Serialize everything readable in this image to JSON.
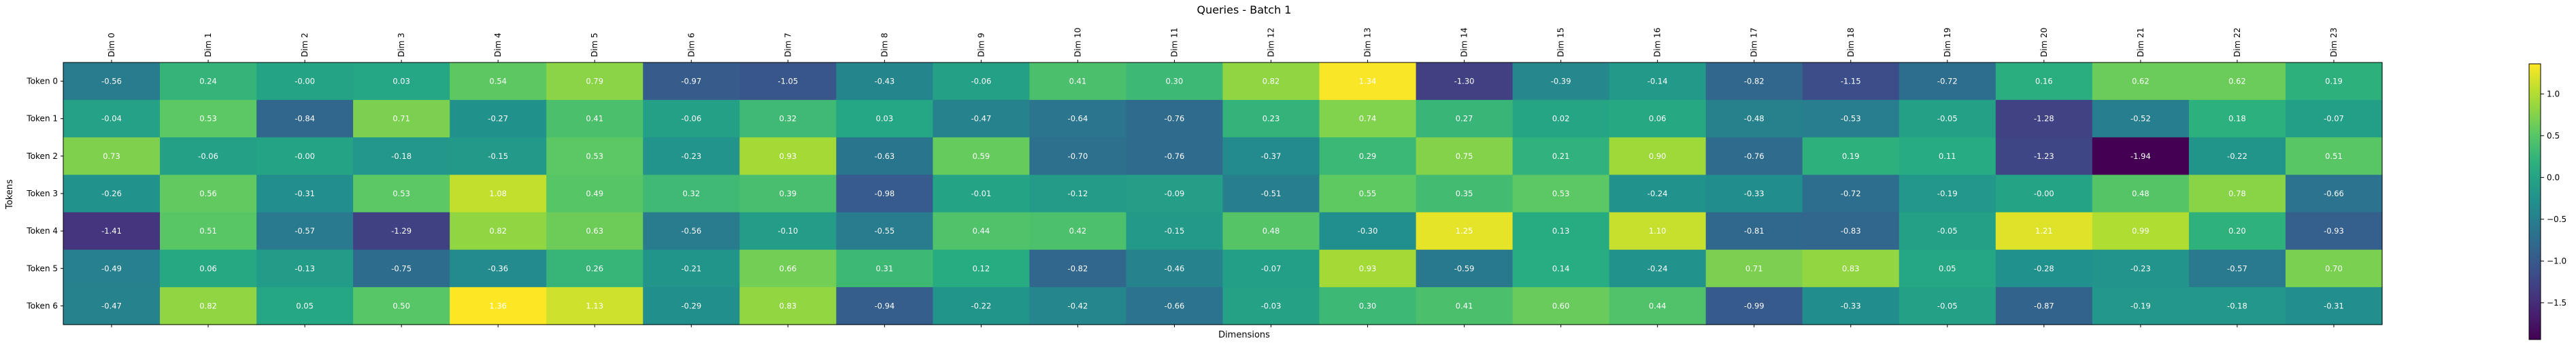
{
  "chart_data": {
    "type": "heatmap",
    "title": "Queries - Batch 1",
    "xlabel": "Dimensions",
    "ylabel": "Tokens",
    "x_categories": [
      "Dim 0",
      "Dim 1",
      "Dim 2",
      "Dim 3",
      "Dim 4",
      "Dim 5",
      "Dim 6",
      "Dim 7",
      "Dim 8",
      "Dim 9",
      "Dim 10",
      "Dim 11",
      "Dim 12",
      "Dim 13",
      "Dim 14",
      "Dim 15",
      "Dim 16",
      "Dim 17",
      "Dim 18",
      "Dim 19",
      "Dim 20",
      "Dim 21",
      "Dim 22",
      "Dim 23"
    ],
    "y_categories": [
      "Token 0",
      "Token 1",
      "Token 2",
      "Token 3",
      "Token 4",
      "Token 5",
      "Token 6"
    ],
    "values": [
      [
        -0.56,
        0.24,
        -0.0,
        0.03,
        0.54,
        0.79,
        -0.97,
        -1.05,
        -0.43,
        -0.06,
        0.41,
        0.3,
        0.82,
        1.34,
        -1.3,
        -0.39,
        -0.14,
        -0.82,
        -1.15,
        -0.72,
        0.16,
        0.62,
        0.62,
        0.19
      ],
      [
        -0.04,
        0.53,
        -0.84,
        0.71,
        -0.27,
        0.41,
        -0.06,
        0.32,
        0.03,
        -0.47,
        -0.64,
        -0.76,
        0.23,
        0.74,
        0.27,
        0.02,
        0.06,
        -0.48,
        -0.53,
        -0.05,
        -1.28,
        -0.52,
        0.18,
        -0.07
      ],
      [
        0.73,
        -0.06,
        -0.0,
        -0.18,
        -0.15,
        0.53,
        -0.23,
        0.93,
        -0.63,
        0.59,
        -0.7,
        -0.76,
        -0.37,
        0.29,
        0.75,
        0.21,
        0.9,
        -0.76,
        0.19,
        0.11,
        -1.23,
        -1.94,
        -0.22,
        0.51
      ],
      [
        -0.26,
        0.56,
        -0.31,
        0.53,
        1.08,
        0.49,
        0.32,
        0.39,
        -0.98,
        -0.01,
        -0.12,
        -0.09,
        -0.51,
        0.55,
        0.35,
        0.53,
        -0.24,
        -0.33,
        -0.72,
        -0.19,
        -0.0,
        0.48,
        0.78,
        -0.66
      ],
      [
        -1.41,
        0.51,
        -0.57,
        -1.29,
        0.82,
        0.63,
        -0.56,
        -0.1,
        -0.55,
        0.44,
        0.42,
        -0.15,
        0.48,
        -0.3,
        1.25,
        0.13,
        1.1,
        -0.81,
        -0.83,
        -0.05,
        1.21,
        0.99,
        0.2,
        -0.93
      ],
      [
        -0.49,
        0.06,
        -0.13,
        -0.75,
        -0.36,
        0.26,
        -0.21,
        0.66,
        0.31,
        0.12,
        -0.82,
        -0.46,
        -0.07,
        0.93,
        -0.59,
        0.14,
        -0.24,
        0.71,
        0.83,
        0.05,
        -0.28,
        -0.23,
        -0.57,
        0.7
      ],
      [
        -0.47,
        0.82,
        0.05,
        0.5,
        1.36,
        1.13,
        -0.29,
        0.83,
        -0.94,
        -0.22,
        -0.42,
        -0.66,
        -0.03,
        0.3,
        0.41,
        0.6,
        0.44,
        -0.99,
        -0.33,
        -0.05,
        -0.87,
        -0.19,
        -0.18,
        -0.31
      ]
    ],
    "colormap": "viridis",
    "vmin": -1.94,
    "vmax": 1.36,
    "colorbar_ticks": [
      "1.0",
      "0.5",
      "0.0",
      "−0.5",
      "−1.0",
      "−1.5"
    ],
    "grid": false
  }
}
